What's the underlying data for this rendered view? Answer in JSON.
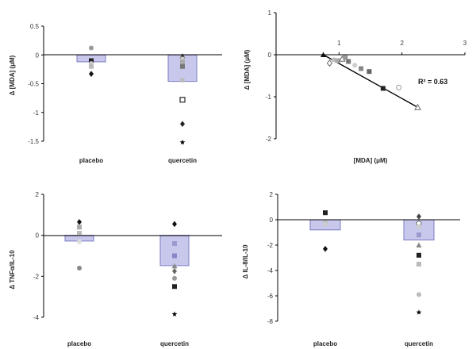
{
  "colors": {
    "bar_fill": "#c8c8ec",
    "bar_stroke": "#7b7bc4",
    "axis": "#000000",
    "markers": [
      "#999999",
      "#222222",
      "#bbbbbb",
      "#555555",
      "#dddddd",
      "#000000",
      "#888888",
      "#666666"
    ]
  },
  "chart_data": [
    {
      "id": "a",
      "type": "bar",
      "title": "",
      "xlabel": "",
      "ylabel": "Δ [MDA] (μM)",
      "categories": [
        "placebo",
        "quercetin"
      ],
      "values": [
        -0.12,
        -0.46
      ],
      "ylim": [
        -1.5,
        0.5
      ],
      "yticks": [
        "0.5",
        "0",
        "-0.5",
        "-1",
        "-1.5"
      ],
      "grid": false,
      "points": [
        [
          {
            "y": 0.12,
            "marker": "circle",
            "color": "#999999"
          },
          {
            "y": -0.1,
            "marker": "square",
            "color": "#222222"
          },
          {
            "y": -0.15,
            "marker": "circle",
            "color": "#cccccc"
          },
          {
            "y": -0.2,
            "marker": "square",
            "color": "#bbbbbb"
          },
          {
            "y": -0.33,
            "marker": "diamond",
            "color": "#111111"
          }
        ],
        [
          {
            "y": -0.02,
            "marker": "triangle",
            "color": "#333333"
          },
          {
            "y": -0.07,
            "marker": "circle",
            "color": "#cccccc"
          },
          {
            "y": -0.12,
            "marker": "square",
            "color": "#aaaaaa"
          },
          {
            "y": -0.2,
            "marker": "square",
            "color": "#777777"
          },
          {
            "y": -0.44,
            "marker": "circle",
            "color": "#bbbbbb"
          },
          {
            "y": -0.78,
            "marker": "square-open",
            "color": "#000000"
          },
          {
            "y": -1.2,
            "marker": "diamond",
            "color": "#222222"
          },
          {
            "y": -1.52,
            "marker": "star",
            "color": "#000000"
          }
        ]
      ]
    },
    {
      "id": "b",
      "type": "scatter",
      "title": "",
      "xlabel": "[MDA] (μM)",
      "ylabel": "Δ [MDA] (μM)",
      "xlim": [
        0,
        3
      ],
      "ylim": [
        -2,
        1
      ],
      "xticks": [
        "1",
        "2",
        "3"
      ],
      "yticks": [
        "1",
        "0",
        "-1",
        "-2"
      ],
      "annotation": "R² = 0.63",
      "grid": false,
      "trendline": [
        [
          0.75,
          0.0
        ],
        [
          2.25,
          -1.25
        ]
      ],
      "points": [
        {
          "x": 0.75,
          "y": 0.0,
          "marker": "triangle",
          "color": "#111111"
        },
        {
          "x": 0.85,
          "y": -0.2,
          "marker": "diamond-open",
          "color": "#666666"
        },
        {
          "x": 0.92,
          "y": -0.12,
          "marker": "circle",
          "color": "#bbbbbb"
        },
        {
          "x": 0.98,
          "y": -0.14,
          "marker": "square",
          "color": "#aaaaaa"
        },
        {
          "x": 1.05,
          "y": -0.1,
          "marker": "triangle-open",
          "color": "#666666"
        },
        {
          "x": 1.1,
          "y": -0.07,
          "marker": "square",
          "color": "#999999"
        },
        {
          "x": 1.15,
          "y": -0.16,
          "marker": "square",
          "color": "#777777"
        },
        {
          "x": 1.25,
          "y": -0.25,
          "marker": "circle",
          "color": "#cccccc"
        },
        {
          "x": 1.35,
          "y": -0.33,
          "marker": "square",
          "color": "#888888"
        },
        {
          "x": 1.48,
          "y": -0.4,
          "marker": "square",
          "color": "#666666"
        },
        {
          "x": 1.7,
          "y": -0.8,
          "marker": "square",
          "color": "#222222"
        },
        {
          "x": 1.95,
          "y": -0.78,
          "marker": "circle-open",
          "color": "#999999"
        },
        {
          "x": 2.25,
          "y": -1.25,
          "marker": "triangle-open",
          "color": "#666666"
        }
      ]
    },
    {
      "id": "c",
      "type": "bar",
      "title": "",
      "xlabel": "",
      "ylabel": "Δ TNFα/IL-10",
      "categories": [
        "placebo",
        "quercetin"
      ],
      "values": [
        -0.28,
        -1.48
      ],
      "ylim": [
        -4,
        2
      ],
      "yticks": [
        "2",
        "0",
        "-2",
        "-4"
      ],
      "grid": false,
      "points": [
        [
          {
            "y": 0.65,
            "marker": "diamond",
            "color": "#111111"
          },
          {
            "y": 0.4,
            "marker": "square",
            "color": "#aaaaaa"
          },
          {
            "y": 0.1,
            "marker": "square",
            "color": "#bbbbbb"
          },
          {
            "y": -0.32,
            "marker": "circle",
            "color": "#dddddd"
          },
          {
            "y": -1.6,
            "marker": "circle",
            "color": "#888888"
          }
        ],
        [
          {
            "y": 0.55,
            "marker": "diamond",
            "color": "#111111"
          },
          {
            "y": -0.4,
            "marker": "square",
            "color": "#9a9ad0"
          },
          {
            "y": -1.0,
            "marker": "square",
            "color": "#8888c8"
          },
          {
            "y": -1.5,
            "marker": "triangle",
            "color": "#888888"
          },
          {
            "y": -1.75,
            "marker": "diamond",
            "color": "#666666"
          },
          {
            "y": -2.1,
            "marker": "circle",
            "color": "#999999"
          },
          {
            "y": -2.5,
            "marker": "square",
            "color": "#222222"
          },
          {
            "y": -3.85,
            "marker": "star",
            "color": "#000000"
          }
        ]
      ]
    },
    {
      "id": "d",
      "type": "bar",
      "title": "",
      "xlabel": "",
      "ylabel": "Δ IL-8/IL-10",
      "categories": [
        "placebo",
        "quercetin"
      ],
      "values": [
        -0.8,
        -1.6
      ],
      "ylim": [
        -8,
        2
      ],
      "yticks": [
        "2",
        "0",
        "-2",
        "-4",
        "-6",
        "-8"
      ],
      "grid": false,
      "points": [
        [
          {
            "y": 0.55,
            "marker": "square",
            "color": "#222222"
          },
          {
            "y": -0.2,
            "marker": "circle",
            "color": "#bbbbbb"
          },
          {
            "y": -0.35,
            "marker": "circle",
            "color": "#cccccc"
          },
          {
            "y": -2.3,
            "marker": "diamond",
            "color": "#111111"
          }
        ],
        [
          {
            "y": 0.25,
            "marker": "diamond",
            "color": "#444444"
          },
          {
            "y": -0.3,
            "marker": "circle-open",
            "color": "#666666"
          },
          {
            "y": -0.55,
            "marker": "circle",
            "color": "#cccccc"
          },
          {
            "y": -1.2,
            "marker": "square",
            "color": "#9a9ad0"
          },
          {
            "y": -2.0,
            "marker": "triangle",
            "color": "#888888"
          },
          {
            "y": -2.8,
            "marker": "square",
            "color": "#222222"
          },
          {
            "y": -3.5,
            "marker": "square",
            "color": "#bbbbbb"
          },
          {
            "y": -5.9,
            "marker": "circle",
            "color": "#bbbbbb"
          },
          {
            "y": -7.3,
            "marker": "star",
            "color": "#000000"
          }
        ]
      ]
    }
  ]
}
